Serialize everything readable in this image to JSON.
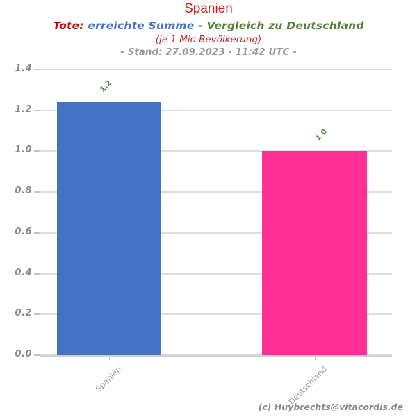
{
  "header": {
    "title": "Spanien",
    "title_color": "#cc2222",
    "subtitle_parts": [
      {
        "text": "Tote:",
        "color": "#c00000"
      },
      {
        "text": " erreichte Summe",
        "color": "#4472c4"
      },
      {
        "text": " - Vergleich zu Deutschland",
        "color": "#538135"
      }
    ],
    "subnote": "(je 1 Mio Bevölkerung)",
    "subnote_color": "#cc2222",
    "stand_line": "- Stand: 27.09.2023 - 11:42 UTC -"
  },
  "chart_data": {
    "type": "bar",
    "title": "Spanien",
    "categories": [
      "Spanien",
      "Deutschland"
    ],
    "values": [
      1.24,
      1.0
    ],
    "bar_labels": [
      "1.2",
      "1.0"
    ],
    "bar_colors": [
      "#4472c4",
      "#ff3093"
    ],
    "bar_label_color": "#4a8a2a",
    "xlabel": "",
    "ylabel": "",
    "ylim": [
      0,
      1.4
    ],
    "ytick_labels": [
      "0.0",
      "0.2",
      "0.4",
      "0.6",
      "0.8",
      "1.0",
      "1.2",
      "1.4"
    ],
    "grid": true,
    "legend": "none"
  },
  "footer": {
    "credit": "(c) Huybrechts@vitacordis.de"
  }
}
